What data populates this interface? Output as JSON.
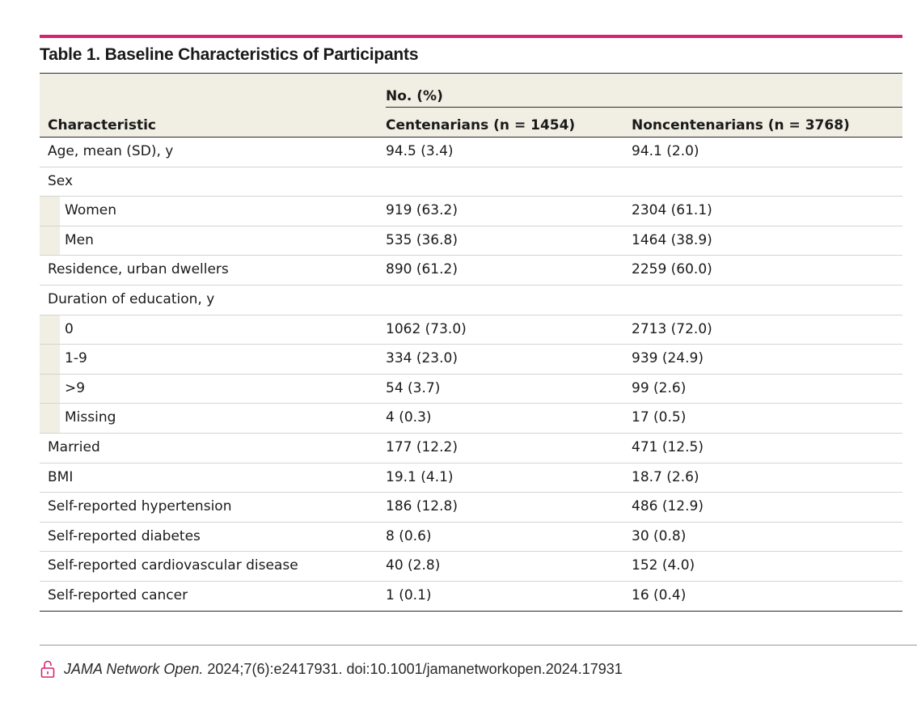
{
  "table": {
    "title": "Table 1. Baseline Characteristics of Participants",
    "spanner": "No. (%)",
    "headers": [
      "Characteristic",
      "Centenarians (n = 1454)",
      "Noncentenarians (n = 3768)"
    ],
    "rows": [
      {
        "label": "Age, mean (SD), y",
        "c1": "94.5 (3.4)",
        "c2": "94.1 (2.0)",
        "indent": false
      },
      {
        "label": "Sex",
        "c1": "",
        "c2": "",
        "indent": false
      },
      {
        "label": "Women",
        "c1": "919 (63.2)",
        "c2": "2304 (61.1)",
        "indent": true
      },
      {
        "label": "Men",
        "c1": "535 (36.8)",
        "c2": "1464 (38.9)",
        "indent": true
      },
      {
        "label": "Residence, urban dwellers",
        "c1": "890 (61.2)",
        "c2": "2259 (60.0)",
        "indent": false
      },
      {
        "label": "Duration of education, y",
        "c1": "",
        "c2": "",
        "indent": false
      },
      {
        "label": "0",
        "c1": "1062 (73.0)",
        "c2": "2713 (72.0)",
        "indent": true
      },
      {
        "label": "1-9",
        "c1": "334 (23.0)",
        "c2": "939 (24.9)",
        "indent": true
      },
      {
        "label": ">9",
        "c1": "54 (3.7)",
        "c2": "99 (2.6)",
        "indent": true
      },
      {
        "label": "Missing",
        "c1": "4 (0.3)",
        "c2": "17 (0.5)",
        "indent": true
      },
      {
        "label": "Married",
        "c1": "177 (12.2)",
        "c2": "471 (12.5)",
        "indent": false
      },
      {
        "label": "BMI",
        "c1": "19.1 (4.1)",
        "c2": "18.7 (2.6)",
        "indent": false
      },
      {
        "label": "Self-reported hypertension",
        "c1": "186 (12.8)",
        "c2": "486 (12.9)",
        "indent": false
      },
      {
        "label": "Self-reported diabetes",
        "c1": "8 (0.6)",
        "c2": "30 (0.8)",
        "indent": false
      },
      {
        "label": "Self-reported cardiovascular disease",
        "c1": "40 (2.8)",
        "c2": "152 (4.0)",
        "indent": false
      },
      {
        "label": "Self-reported cancer",
        "c1": "1 (0.1)",
        "c2": "16 (0.4)",
        "indent": false
      }
    ]
  },
  "citation": {
    "icon": "open-lock-icon",
    "journal": "JAMA Network Open.",
    "text": "2024;7(6):e2417931. doi:10.1001/jamanetworkopen.2024.17931"
  },
  "colors": {
    "accent": "#d6246e",
    "header_bg": "#f1eee3"
  }
}
